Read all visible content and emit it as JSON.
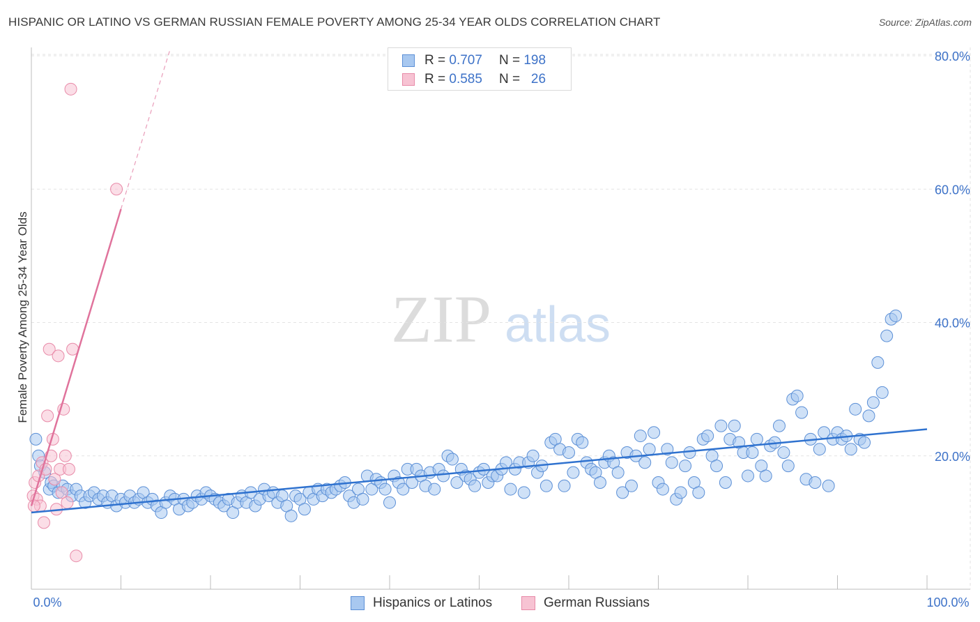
{
  "chart_data": {
    "type": "scatter",
    "title": "HISPANIC OR LATINO VS GERMAN RUSSIAN FEMALE POVERTY AMONG 25-34 YEAR OLDS CORRELATION CHART",
    "source": "Source: ZipAtlas.com",
    "watermark": {
      "zip": "ZIP",
      "atlas": "atlas"
    },
    "xlabel": "",
    "ylabel": "Female Poverty Among 25-34 Year Olds",
    "xlim": [
      0,
      100
    ],
    "ylim": [
      0,
      80
    ],
    "x_tick_labels": {
      "min": "0.0%",
      "max": "100.0%"
    },
    "y_ticks": [
      20,
      40,
      60,
      80
    ],
    "y_tick_labels": [
      "20.0%",
      "40.0%",
      "60.0%",
      "80.0%"
    ],
    "grid": true,
    "colors": {
      "blue_fill": "#a8c8f0",
      "blue_stroke": "#5b8fd6",
      "blue_line": "#2f72cf",
      "pink_fill": "#f7c3d3",
      "pink_stroke": "#e88aa8",
      "pink_line": "#e0739c",
      "axis_label": "#3d72c8"
    },
    "legend": {
      "stats": [
        {
          "r_label": "R =",
          "r_value": "0.707",
          "n_label": "N =",
          "n_value": "198"
        },
        {
          "r_label": "R =",
          "r_value": "0.585",
          "n_label": "N =",
          "n_value": "26"
        }
      ],
      "series_names": [
        "Hispanics or Latinos",
        "German Russians"
      ]
    },
    "series": [
      {
        "name": "Hispanics or Latinos",
        "trend": {
          "x0": 0,
          "y0": 11.5,
          "x1": 100,
          "y1": 24.0
        },
        "points": [
          [
            0.5,
            22.5
          ],
          [
            0.8,
            20
          ],
          [
            1,
            18.5
          ],
          [
            1.5,
            17.5
          ],
          [
            2,
            15
          ],
          [
            2.2,
            16
          ],
          [
            2.5,
            15.5
          ],
          [
            3,
            14.5
          ],
          [
            3.5,
            15.5
          ],
          [
            4,
            15
          ],
          [
            4.5,
            14
          ],
          [
            5,
            15
          ],
          [
            5.5,
            14
          ],
          [
            6,
            13
          ],
          [
            6.5,
            14
          ],
          [
            7,
            14.5
          ],
          [
            7.5,
            13.5
          ],
          [
            8,
            14
          ],
          [
            8.5,
            13
          ],
          [
            9,
            14
          ],
          [
            9.5,
            12.5
          ],
          [
            10,
            13.5
          ],
          [
            10.5,
            13
          ],
          [
            11,
            14
          ],
          [
            11.5,
            13
          ],
          [
            12,
            13.5
          ],
          [
            12.5,
            14.5
          ],
          [
            13,
            13
          ],
          [
            13.5,
            13.5
          ],
          [
            14,
            12.5
          ],
          [
            14.5,
            11.5
          ],
          [
            15,
            13
          ],
          [
            15.5,
            14
          ],
          [
            16,
            13.5
          ],
          [
            16.5,
            12
          ],
          [
            17,
            13.5
          ],
          [
            17.5,
            12.5
          ],
          [
            18,
            13
          ],
          [
            18.5,
            14
          ],
          [
            19,
            13.5
          ],
          [
            19.5,
            14.5
          ],
          [
            20,
            14
          ],
          [
            20.5,
            13.5
          ],
          [
            21,
            13
          ],
          [
            21.5,
            12.5
          ],
          [
            22,
            13.5
          ],
          [
            22.5,
            11.5
          ],
          [
            23,
            13
          ],
          [
            23.5,
            14
          ],
          [
            24,
            13
          ],
          [
            24.5,
            14.5
          ],
          [
            25,
            12.5
          ],
          [
            25.5,
            13.5
          ],
          [
            26,
            15
          ],
          [
            26.5,
            14
          ],
          [
            27,
            14.5
          ],
          [
            27.5,
            13
          ],
          [
            28,
            14
          ],
          [
            28.5,
            12.5
          ],
          [
            29,
            11
          ],
          [
            29.5,
            14
          ],
          [
            30,
            13.5
          ],
          [
            30.5,
            12
          ],
          [
            31,
            14.5
          ],
          [
            31.5,
            13.5
          ],
          [
            32,
            15
          ],
          [
            32.5,
            14
          ],
          [
            33,
            15
          ],
          [
            33.5,
            14.5
          ],
          [
            34,
            15
          ],
          [
            34.5,
            15.5
          ],
          [
            35,
            16
          ],
          [
            35.5,
            14
          ],
          [
            36,
            13
          ],
          [
            36.5,
            15
          ],
          [
            37,
            13.5
          ],
          [
            37.5,
            17
          ],
          [
            38,
            15
          ],
          [
            38.5,
            16.5
          ],
          [
            39,
            16
          ],
          [
            39.5,
            15
          ],
          [
            40,
            13
          ],
          [
            40.5,
            17
          ],
          [
            41,
            16
          ],
          [
            41.5,
            15
          ],
          [
            42,
            18
          ],
          [
            42.5,
            16
          ],
          [
            43,
            18
          ],
          [
            43.5,
            17
          ],
          [
            44,
            15.5
          ],
          [
            44.5,
            17.5
          ],
          [
            45,
            15
          ],
          [
            45.5,
            18
          ],
          [
            46,
            17
          ],
          [
            46.5,
            20
          ],
          [
            47,
            19.5
          ],
          [
            47.5,
            16
          ],
          [
            48,
            18
          ],
          [
            48.5,
            17
          ],
          [
            49,
            16.5
          ],
          [
            49.5,
            15.5
          ],
          [
            50,
            17.5
          ],
          [
            50.5,
            18
          ],
          [
            51,
            16
          ],
          [
            51.5,
            17
          ],
          [
            52,
            17
          ],
          [
            52.5,
            18
          ],
          [
            53,
            19
          ],
          [
            53.5,
            15
          ],
          [
            54,
            18
          ],
          [
            54.5,
            19
          ],
          [
            55,
            14.5
          ],
          [
            55.5,
            19
          ],
          [
            56,
            20
          ],
          [
            56.5,
            17.5
          ],
          [
            57,
            18.5
          ],
          [
            57.5,
            15.5
          ],
          [
            58,
            22
          ],
          [
            58.5,
            22.5
          ],
          [
            59,
            21
          ],
          [
            59.5,
            15.5
          ],
          [
            60,
            20.5
          ],
          [
            60.5,
            17.5
          ],
          [
            61,
            22.5
          ],
          [
            61.5,
            22
          ],
          [
            62,
            19
          ],
          [
            62.5,
            18
          ],
          [
            63,
            17.5
          ],
          [
            63.5,
            16
          ],
          [
            64,
            19
          ],
          [
            64.5,
            20
          ],
          [
            65,
            19
          ],
          [
            65.5,
            17.5
          ],
          [
            66,
            14.5
          ],
          [
            66.5,
            20.5
          ],
          [
            67,
            15.5
          ],
          [
            67.5,
            20
          ],
          [
            68,
            23
          ],
          [
            68.5,
            19
          ],
          [
            69,
            21
          ],
          [
            69.5,
            23.5
          ],
          [
            70,
            16
          ],
          [
            70.5,
            15
          ],
          [
            71,
            21
          ],
          [
            71.5,
            19
          ],
          [
            72,
            13.5
          ],
          [
            72.5,
            14.5
          ],
          [
            73,
            18.5
          ],
          [
            73.5,
            20.5
          ],
          [
            74,
            16
          ],
          [
            74.5,
            14.5
          ],
          [
            75,
            22.5
          ],
          [
            75.5,
            23
          ],
          [
            76,
            20
          ],
          [
            76.5,
            18.5
          ],
          [
            77,
            24.5
          ],
          [
            77.5,
            16
          ],
          [
            78,
            22.5
          ],
          [
            78.5,
            24.5
          ],
          [
            79,
            22
          ],
          [
            79.5,
            20.5
          ],
          [
            80,
            17
          ],
          [
            80.5,
            20.5
          ],
          [
            81,
            22.5
          ],
          [
            81.5,
            18.5
          ],
          [
            82,
            17
          ],
          [
            82.5,
            21.5
          ],
          [
            83,
            22
          ],
          [
            83.5,
            24.5
          ],
          [
            84,
            20.5
          ],
          [
            84.5,
            18.5
          ],
          [
            85,
            28.5
          ],
          [
            85.5,
            29
          ],
          [
            86,
            26.5
          ],
          [
            86.5,
            16.5
          ],
          [
            87,
            22.5
          ],
          [
            87.5,
            16
          ],
          [
            88,
            21
          ],
          [
            88.5,
            23.5
          ],
          [
            89,
            15.5
          ],
          [
            89.5,
            22.5
          ],
          [
            90,
            23.5
          ],
          [
            90.5,
            22.5
          ],
          [
            91,
            23
          ],
          [
            91.5,
            21
          ],
          [
            92,
            27
          ],
          [
            92.5,
            22.5
          ],
          [
            93,
            22
          ],
          [
            93.5,
            26
          ],
          [
            94,
            28
          ],
          [
            94.5,
            34
          ],
          [
            95,
            29.5
          ],
          [
            95.5,
            38
          ],
          [
            96,
            40.5
          ],
          [
            96.5,
            41
          ]
        ]
      },
      {
        "name": "German Russians",
        "trend": {
          "x0": 0,
          "y0": 12.5,
          "x1": 10,
          "y1": 57
        },
        "trend_ext": {
          "x0": 10,
          "y0": 57,
          "x1": 15.5,
          "y1": 81
        },
        "points": [
          [
            0.2,
            14
          ],
          [
            0.4,
            16
          ],
          [
            0.6,
            13.5
          ],
          [
            0.8,
            17
          ],
          [
            1,
            12.5
          ],
          [
            1.2,
            19
          ],
          [
            1.4,
            10
          ],
          [
            1.6,
            18
          ],
          [
            1.8,
            26
          ],
          [
            2,
            36
          ],
          [
            2.2,
            20
          ],
          [
            2.4,
            22.5
          ],
          [
            2.6,
            16.5
          ],
          [
            2.8,
            12
          ],
          [
            3,
            35
          ],
          [
            3.2,
            18
          ],
          [
            3.4,
            14.5
          ],
          [
            3.6,
            27
          ],
          [
            3.8,
            20
          ],
          [
            4,
            13
          ],
          [
            4.2,
            18
          ],
          [
            4.4,
            75
          ],
          [
            4.6,
            36
          ],
          [
            5,
            5
          ],
          [
            9.5,
            60
          ],
          [
            0.3,
            12.5
          ]
        ]
      }
    ]
  }
}
